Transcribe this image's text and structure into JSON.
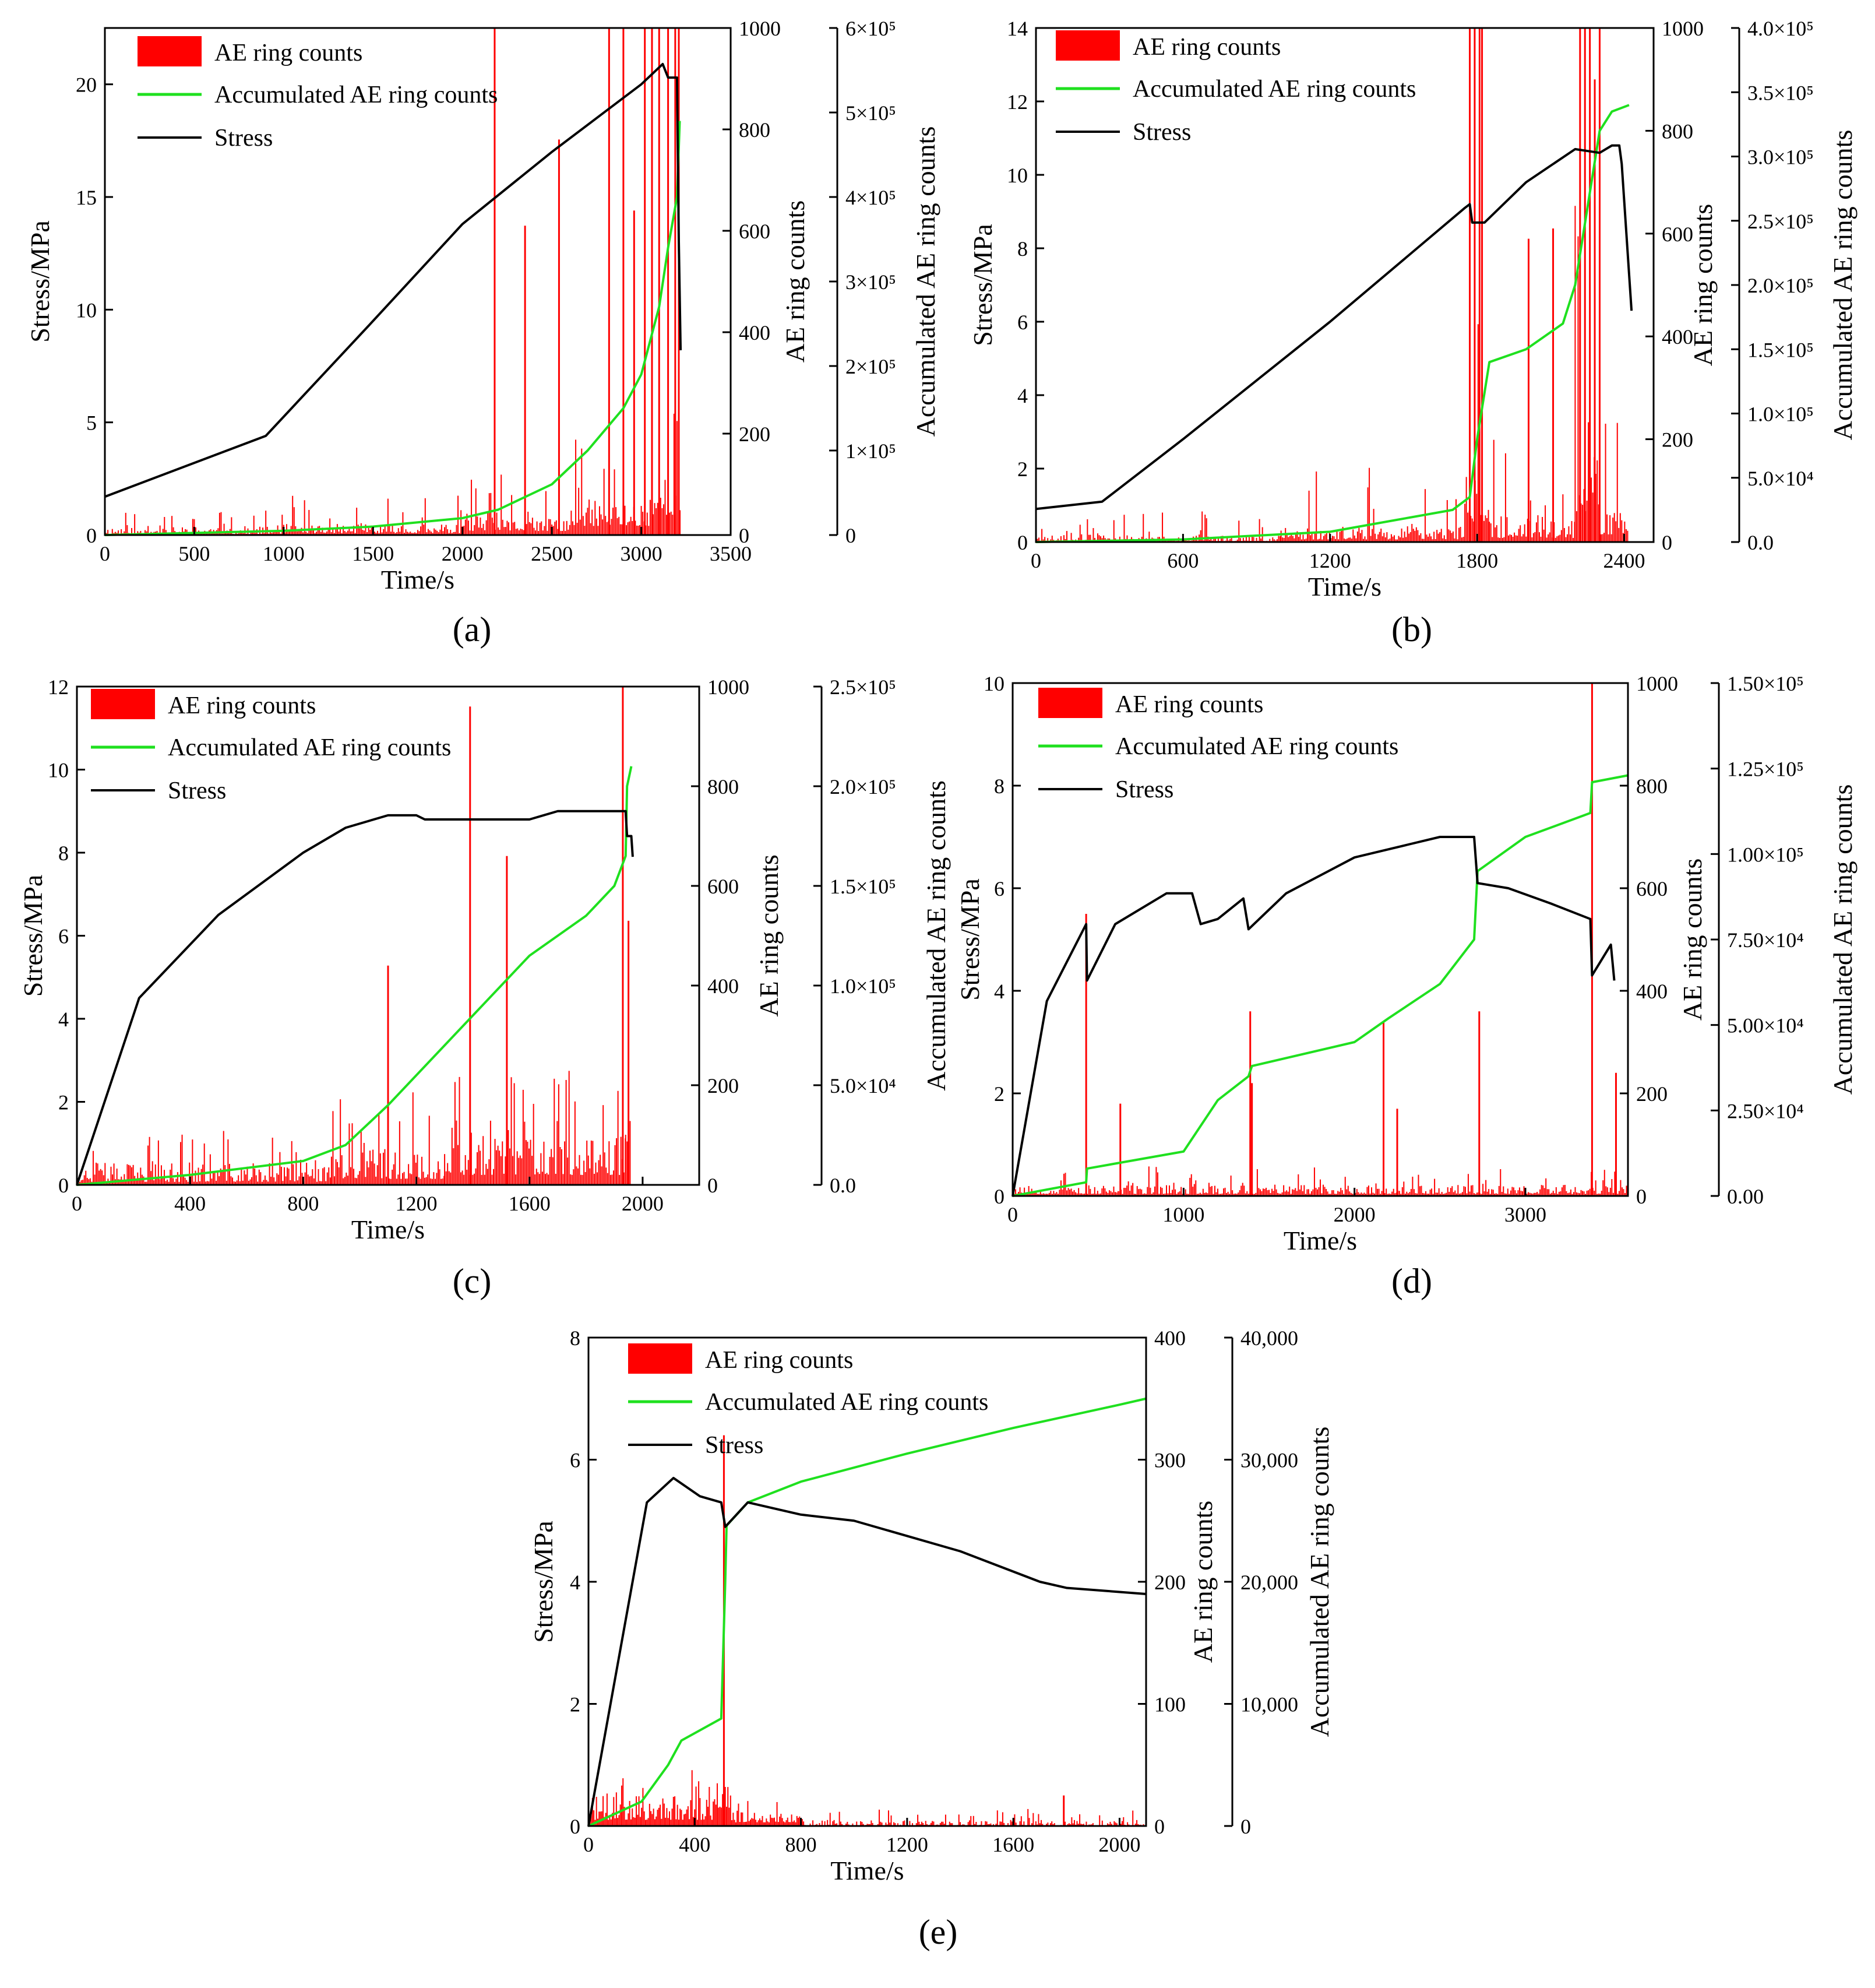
{
  "figure": {
    "legend_labels": [
      "AE ring counts",
      "Accumulated AE ring counts",
      "Stress"
    ],
    "colors": {
      "ae": "#ff0000",
      "accumulated": "#1fe01f",
      "stress": "#000000",
      "axis": "#000000"
    }
  },
  "chart_data": [
    {
      "id": "a",
      "panel_label": "(a)",
      "type": "line+bar",
      "xlabel": "Time/s",
      "ylabel_left": "Stress/MPa",
      "ylabel_right1": "AE ring counts",
      "ylabel_right2": "Accumulated AE ring counts",
      "xlim": [
        0,
        3500
      ],
      "xticks": [
        0,
        500,
        1000,
        1500,
        2000,
        2500,
        3000,
        3500
      ],
      "xtick_labels": [
        "0",
        "500",
        "1000",
        "1500",
        "2000",
        "2500",
        "3000",
        "3500"
      ],
      "ylim_left": [
        0,
        22.5
      ],
      "yticks_left": [
        0,
        5,
        10,
        15,
        20
      ],
      "ytick_labels_left": [
        "0",
        "5",
        "10",
        "15",
        "20"
      ],
      "ylim_right1": [
        0,
        1000
      ],
      "yticks_right1": [
        0,
        200,
        400,
        600,
        800,
        1000
      ],
      "ytick_labels_right1": [
        "0",
        "200",
        "400",
        "600",
        "800",
        "1000"
      ],
      "ylim_right2": [
        0,
        600000
      ],
      "yticks_right2": [
        0,
        100000,
        200000,
        300000,
        400000,
        500000,
        600000
      ],
      "ytick_labels_right2": [
        "0",
        "1×10⁵",
        "2×10⁵",
        "3×10⁵",
        "4×10⁵",
        "5×10⁵",
        "6×10⁵"
      ],
      "ae_max": 1000,
      "ae_seed": 11,
      "ae_bands": [
        [
          0,
          1000,
          2,
          18,
          50
        ],
        [
          1000,
          2000,
          4,
          22,
          80
        ],
        [
          2000,
          2600,
          8,
          35,
          120
        ],
        [
          2600,
          3050,
          18,
          70,
          200
        ],
        [
          3050,
          3220,
          40,
          120,
          300
        ]
      ],
      "ae_spikes": [
        [
          2180,
          1000
        ],
        [
          2350,
          610
        ],
        [
          2540,
          780
        ],
        [
          2820,
          1000
        ],
        [
          2900,
          1000
        ],
        [
          2960,
          640
        ],
        [
          3020,
          1000
        ],
        [
          3060,
          1000
        ],
        [
          3100,
          1000
        ],
        [
          3150,
          1000
        ],
        [
          3190,
          1000
        ],
        [
          3210,
          1000
        ]
      ],
      "stress": [
        [
          0,
          1.7
        ],
        [
          900,
          4.4
        ],
        [
          1500,
          9.5
        ],
        [
          2000,
          13.8
        ],
        [
          2500,
          17.0
        ],
        [
          2800,
          18.8
        ],
        [
          3000,
          20.0
        ],
        [
          3120,
          20.9
        ],
        [
          3150,
          20.3
        ],
        [
          3200,
          20.3
        ],
        [
          3210,
          13
        ],
        [
          3220,
          8.2
        ]
      ],
      "accumulated": [
        [
          0,
          0
        ],
        [
          1000,
          5000
        ],
        [
          1500,
          10000
        ],
        [
          2000,
          20000
        ],
        [
          2200,
          30000
        ],
        [
          2500,
          60000
        ],
        [
          2700,
          100000
        ],
        [
          2900,
          150000
        ],
        [
          3000,
          190000
        ],
        [
          3100,
          270000
        ],
        [
          3150,
          340000
        ],
        [
          3200,
          400000
        ],
        [
          3215,
          490000
        ]
      ]
    },
    {
      "id": "b",
      "panel_label": "(b)",
      "type": "line+bar",
      "xlabel": "Time/s",
      "ylabel_left": "Stress/MPa",
      "ylabel_right1": "AE ring counts",
      "ylabel_right2": "Accumulated AE ring counts",
      "xlim": [
        0,
        2520
      ],
      "xticks": [
        0,
        600,
        1200,
        1800,
        2400
      ],
      "xtick_labels": [
        "0",
        "600",
        "1200",
        "1800",
        "2400"
      ],
      "ylim_left": [
        0,
        14
      ],
      "yticks_left": [
        0,
        2,
        4,
        6,
        8,
        10,
        12,
        14
      ],
      "ytick_labels_left": [
        "0",
        "2",
        "4",
        "6",
        "8",
        "10",
        "12",
        "14"
      ],
      "ylim_right1": [
        0,
        1000
      ],
      "yticks_right1": [
        0,
        200,
        400,
        600,
        800,
        1000
      ],
      "ytick_labels_right1": [
        "0",
        "200",
        "400",
        "600",
        "800",
        "1000"
      ],
      "ylim_right2": [
        0,
        400000
      ],
      "yticks_right2": [
        0,
        50000,
        100000,
        150000,
        200000,
        250000,
        300000,
        350000,
        400000
      ],
      "ytick_labels_right2": [
        "0.0",
        "5.0×10⁴",
        "1.0×10⁵",
        "1.5×10⁵",
        "2.0×10⁵",
        "2.5×10⁵",
        "3.0×10⁵",
        "3.5×10⁵",
        "4.0×10⁵"
      ],
      "ae_max": 1000,
      "ae_seed": 23,
      "ae_bands": [
        [
          0,
          1000,
          2,
          15,
          60
        ],
        [
          1000,
          1750,
          5,
          30,
          150
        ],
        [
          1750,
          1850,
          40,
          150,
          500
        ],
        [
          1850,
          2200,
          8,
          50,
          200
        ],
        [
          2200,
          2300,
          60,
          250,
          700
        ],
        [
          2300,
          2420,
          15,
          80,
          250
        ]
      ],
      "ae_spikes": [
        [
          1770,
          1000
        ],
        [
          1790,
          1000
        ],
        [
          1810,
          1000
        ],
        [
          1820,
          1000
        ],
        [
          2010,
          590
        ],
        [
          2110,
          610
        ],
        [
          2220,
          1000
        ],
        [
          2240,
          1000
        ],
        [
          2260,
          1000
        ],
        [
          2280,
          900
        ],
        [
          2300,
          1000
        ]
      ],
      "stress": [
        [
          0,
          0.9
        ],
        [
          270,
          1.1
        ],
        [
          600,
          2.8
        ],
        [
          1200,
          6.0
        ],
        [
          1750,
          9.1
        ],
        [
          1770,
          9.2
        ],
        [
          1780,
          8.7
        ],
        [
          1830,
          8.7
        ],
        [
          2000,
          9.8
        ],
        [
          2200,
          10.7
        ],
        [
          2300,
          10.6
        ],
        [
          2350,
          10.8
        ],
        [
          2380,
          10.8
        ],
        [
          2390,
          10.3
        ],
        [
          2430,
          6.3
        ]
      ],
      "accumulated": [
        [
          0,
          0
        ],
        [
          600,
          2000
        ],
        [
          1200,
          8000
        ],
        [
          1700,
          25000
        ],
        [
          1770,
          35000
        ],
        [
          1800,
          80000
        ],
        [
          1850,
          140000
        ],
        [
          2000,
          150000
        ],
        [
          2150,
          170000
        ],
        [
          2200,
          200000
        ],
        [
          2250,
          260000
        ],
        [
          2300,
          320000
        ],
        [
          2350,
          335000
        ],
        [
          2420,
          340000
        ]
      ]
    },
    {
      "id": "c",
      "panel_label": "(c)",
      "type": "line+bar",
      "xlabel": "Time/s",
      "ylabel_left": "Stress/MPa",
      "ylabel_right1": "AE ring counts",
      "ylabel_right2": "Accumulated AE ring counts",
      "xlim": [
        0,
        2200
      ],
      "xticks": [
        0,
        400,
        800,
        1200,
        1600,
        2000
      ],
      "xtick_labels": [
        "0",
        "400",
        "800",
        "1200",
        "1600",
        "2000"
      ],
      "ylim_left": [
        0,
        12
      ],
      "yticks_left": [
        0,
        2,
        4,
        6,
        8,
        10,
        12
      ],
      "ytick_labels_left": [
        "0",
        "2",
        "4",
        "6",
        "8",
        "10",
        "12"
      ],
      "ylim_right1": [
        0,
        1000
      ],
      "yticks_right1": [
        0,
        200,
        400,
        600,
        800,
        1000
      ],
      "ytick_labels_right1": [
        "0",
        "200",
        "400",
        "600",
        "800",
        "1000"
      ],
      "ylim_right2": [
        0,
        250000
      ],
      "yticks_right2": [
        0,
        50000,
        100000,
        150000,
        200000,
        250000
      ],
      "ytick_labels_right2": [
        "0.0",
        "5.0×10⁴",
        "1.0×10⁵",
        "1.5×10⁵",
        "2.0×10⁵",
        "2.5×10⁵"
      ],
      "ae_max": 1000,
      "ae_seed": 37,
      "ae_bands": [
        [
          0,
          900,
          6,
          45,
          110
        ],
        [
          900,
          1300,
          12,
          80,
          200
        ],
        [
          1300,
          1940,
          20,
          110,
          230
        ],
        [
          1940,
          1960,
          80,
          200,
          400
        ]
      ],
      "ae_spikes": [
        [
          1100,
          440
        ],
        [
          1390,
          960
        ],
        [
          1520,
          660
        ],
        [
          1930,
          1000
        ],
        [
          1950,
          530
        ]
      ],
      "stress": [
        [
          0,
          0
        ],
        [
          220,
          4.5
        ],
        [
          500,
          6.5
        ],
        [
          800,
          8.0
        ],
        [
          950,
          8.6
        ],
        [
          1100,
          8.9
        ],
        [
          1200,
          8.9
        ],
        [
          1230,
          8.8
        ],
        [
          1400,
          8.8
        ],
        [
          1600,
          8.8
        ],
        [
          1700,
          9.0
        ],
        [
          1940,
          9.0
        ],
        [
          1945,
          8.4
        ],
        [
          1960,
          8.4
        ],
        [
          1965,
          7.9
        ]
      ],
      "accumulated": [
        [
          0,
          0
        ],
        [
          400,
          5000
        ],
        [
          800,
          12000
        ],
        [
          950,
          20000
        ],
        [
          1100,
          40000
        ],
        [
          1300,
          70000
        ],
        [
          1500,
          100000
        ],
        [
          1600,
          115000
        ],
        [
          1800,
          135000
        ],
        [
          1900,
          150000
        ],
        [
          1940,
          165000
        ],
        [
          1945,
          200000
        ],
        [
          1960,
          210000
        ]
      ]
    },
    {
      "id": "d",
      "panel_label": "(d)",
      "type": "line+bar",
      "xlabel": "Time/s",
      "ylabel_left": "Stress/MPa",
      "ylabel_right1": "AE ring counts",
      "ylabel_right2": "Accumulated AE ring counts",
      "xlim": [
        0,
        3600
      ],
      "xticks": [
        0,
        1000,
        2000,
        3000
      ],
      "xtick_labels": [
        "0",
        "1000",
        "2000",
        "3000"
      ],
      "ylim_left": [
        0,
        10
      ],
      "yticks_left": [
        0,
        2,
        4,
        6,
        8,
        10
      ],
      "ytick_labels_left": [
        "0",
        "2",
        "4",
        "6",
        "8",
        "10"
      ],
      "ylim_right1": [
        0,
        1000
      ],
      "yticks_right1": [
        0,
        200,
        400,
        600,
        800,
        1000
      ],
      "ytick_labels_right1": [
        "0",
        "200",
        "400",
        "600",
        "800",
        "1000"
      ],
      "ylim_right2": [
        0,
        150000
      ],
      "yticks_right2": [
        0,
        25000,
        50000,
        75000,
        100000,
        125000,
        150000
      ],
      "ytick_labels_right2": [
        "0.00",
        "2.50×10⁴",
        "5.00×10⁴",
        "7.50×10⁴",
        "1.00×10⁵",
        "1.25×10⁵",
        "1.50×10⁵"
      ],
      "ae_max": 1000,
      "ae_seed": 53,
      "ae_bands": [
        [
          0,
          3600,
          4,
          22,
          60
        ]
      ],
      "ae_spikes": [
        [
          430,
          550
        ],
        [
          630,
          180
        ],
        [
          1390,
          360
        ],
        [
          1400,
          220
        ],
        [
          2170,
          340
        ],
        [
          2250,
          170
        ],
        [
          2730,
          360
        ],
        [
          3390,
          1000
        ],
        [
          3530,
          240
        ]
      ],
      "stress": [
        [
          0,
          0
        ],
        [
          200,
          3.8
        ],
        [
          430,
          5.3
        ],
        [
          435,
          4.2
        ],
        [
          600,
          5.3
        ],
        [
          900,
          5.9
        ],
        [
          1050,
          5.9
        ],
        [
          1100,
          5.3
        ],
        [
          1200,
          5.4
        ],
        [
          1350,
          5.8
        ],
        [
          1380,
          5.2
        ],
        [
          1600,
          5.9
        ],
        [
          2000,
          6.6
        ],
        [
          2500,
          7.0
        ],
        [
          2700,
          7.0
        ],
        [
          2720,
          6.1
        ],
        [
          2900,
          6.0
        ],
        [
          3150,
          5.7
        ],
        [
          3380,
          5.4
        ],
        [
          3390,
          4.3
        ],
        [
          3500,
          4.9
        ],
        [
          3520,
          4.2
        ]
      ],
      "accumulated": [
        [
          0,
          0
        ],
        [
          430,
          4000
        ],
        [
          435,
          8000
        ],
        [
          1000,
          13000
        ],
        [
          1200,
          28000
        ],
        [
          1380,
          35000
        ],
        [
          1400,
          38000
        ],
        [
          2000,
          45000
        ],
        [
          2200,
          52000
        ],
        [
          2500,
          62000
        ],
        [
          2700,
          75000
        ],
        [
          2720,
          95000
        ],
        [
          3000,
          105000
        ],
        [
          3380,
          112000
        ],
        [
          3390,
          121000
        ],
        [
          3600,
          123000
        ]
      ]
    },
    {
      "id": "e",
      "panel_label": "(e)",
      "type": "line+bar",
      "xlabel": "Time/s",
      "ylabel_left": "Stress/MPa",
      "ylabel_right1": "AE ring counts",
      "ylabel_right2": "Accumulated AE ring counts",
      "xlim": [
        0,
        2100
      ],
      "xticks": [
        0,
        400,
        800,
        1200,
        1600,
        2000
      ],
      "xtick_labels": [
        "0",
        "400",
        "800",
        "1200",
        "1600",
        "2000"
      ],
      "ylim_left": [
        0,
        8
      ],
      "yticks_left": [
        0,
        2,
        4,
        6,
        8
      ],
      "ytick_labels_left": [
        "0",
        "2",
        "4",
        "6",
        "8"
      ],
      "ylim_right1": [
        0,
        400
      ],
      "yticks_right1": [
        0,
        100,
        200,
        300,
        400
      ],
      "ytick_labels_right1": [
        "0",
        "100",
        "200",
        "300",
        "400"
      ],
      "ylim_right2": [
        0,
        40000
      ],
      "yticks_right2": [
        0,
        10000,
        20000,
        30000,
        40000
      ],
      "ytick_labels_right2": [
        "0",
        "10,000",
        "20,000",
        "30,000",
        "40,000"
      ],
      "ae_max": 400,
      "ae_seed": 71,
      "ae_bands": [
        [
          0,
          480,
          5,
          25,
          50
        ],
        [
          480,
          540,
          15,
          40,
          50
        ],
        [
          540,
          800,
          3,
          12,
          30
        ],
        [
          800,
          2100,
          0,
          5,
          14
        ]
      ],
      "ae_spikes": [
        [
          510,
          320
        ],
        [
          1790,
          25
        ]
      ],
      "stress": [
        [
          0,
          0
        ],
        [
          220,
          5.3
        ],
        [
          320,
          5.7
        ],
        [
          420,
          5.4
        ],
        [
          500,
          5.3
        ],
        [
          515,
          4.9
        ],
        [
          600,
          5.3
        ],
        [
          800,
          5.1
        ],
        [
          1000,
          5.0
        ],
        [
          1400,
          4.5
        ],
        [
          1700,
          4.0
        ],
        [
          1800,
          3.9
        ],
        [
          2100,
          3.8
        ]
      ],
      "accumulated": [
        [
          0,
          0
        ],
        [
          200,
          2000
        ],
        [
          300,
          5000
        ],
        [
          350,
          7000
        ],
        [
          500,
          8800
        ],
        [
          515,
          20000
        ],
        [
          520,
          24600
        ],
        [
          600,
          26500
        ],
        [
          800,
          28200
        ],
        [
          1200,
          30500
        ],
        [
          1600,
          32600
        ],
        [
          2000,
          34500
        ],
        [
          2100,
          35000
        ]
      ]
    }
  ]
}
